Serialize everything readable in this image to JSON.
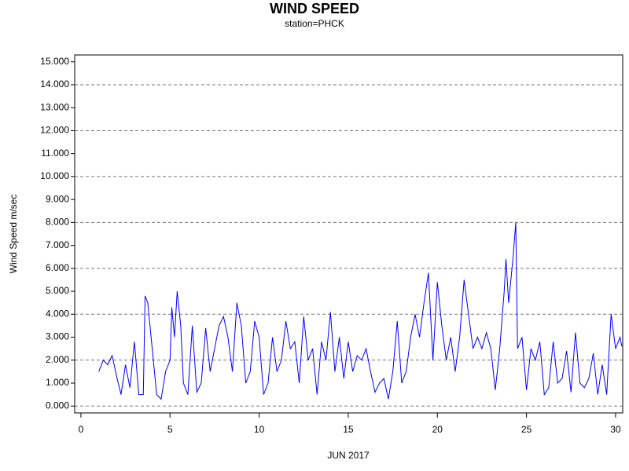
{
  "chart_data": {
    "type": "line",
    "title": "WIND SPEED",
    "subtitle": "station=PHCK",
    "y_label": "Wind Speed m/sec",
    "x_label": "JUN 2017",
    "xlim": [
      -0.35,
      30.4
    ],
    "xticks": [
      0,
      5,
      10,
      15,
      20,
      25,
      30
    ],
    "ylim": [
      -0.3,
      15.3
    ],
    "yticks": [
      {
        "value": 0,
        "label": "0.000"
      },
      {
        "value": 1,
        "label": "1.000"
      },
      {
        "value": 2,
        "label": "2.000"
      },
      {
        "value": 3,
        "label": "3.000"
      },
      {
        "value": 4,
        "label": "4.000"
      },
      {
        "value": 5,
        "label": "5.000"
      },
      {
        "value": 6,
        "label": "6.000"
      },
      {
        "value": 7,
        "label": "7.000"
      },
      {
        "value": 8,
        "label": "8.000"
      },
      {
        "value": 9,
        "label": "9.000"
      },
      {
        "value": 10,
        "label": "10.000"
      },
      {
        "value": 11,
        "label": "11.000"
      },
      {
        "value": 12,
        "label": "12.000"
      },
      {
        "value": 13,
        "label": "13.000"
      },
      {
        "value": 14,
        "label": "14.000"
      },
      {
        "value": 15,
        "label": "15.000"
      }
    ],
    "grid": true,
    "grid_every": 2,
    "x": [
      1.0,
      1.25,
      1.5,
      1.75,
      2.0,
      2.25,
      2.5,
      2.75,
      3.0,
      3.25,
      3.5,
      3.6,
      3.75,
      4.0,
      4.25,
      4.5,
      4.75,
      5.0,
      5.1,
      5.25,
      5.4,
      5.6,
      5.75,
      6.0,
      6.25,
      6.5,
      6.75,
      7.0,
      7.25,
      7.5,
      7.75,
      8.0,
      8.25,
      8.5,
      8.75,
      9.0,
      9.25,
      9.5,
      9.75,
      10.0,
      10.25,
      10.5,
      10.75,
      11.0,
      11.25,
      11.5,
      11.75,
      12.0,
      12.25,
      12.5,
      12.75,
      13.0,
      13.25,
      13.5,
      13.75,
      14.0,
      14.25,
      14.5,
      14.75,
      15.0,
      15.25,
      15.5,
      15.75,
      16.0,
      16.25,
      16.5,
      16.75,
      17.0,
      17.25,
      17.5,
      17.75,
      18.0,
      18.25,
      18.5,
      18.75,
      19.0,
      19.25,
      19.5,
      19.75,
      20.0,
      20.25,
      20.5,
      20.75,
      21.0,
      21.25,
      21.5,
      21.75,
      22.0,
      22.25,
      22.5,
      22.75,
      23.0,
      23.25,
      23.5,
      23.75,
      23.85,
      24.0,
      24.25,
      24.4,
      24.5,
      24.75,
      25.0,
      25.25,
      25.5,
      25.75,
      26.0,
      26.25,
      26.5,
      26.75,
      27.0,
      27.25,
      27.5,
      27.75,
      28.0,
      28.25,
      28.5,
      28.75,
      29.0,
      29.25,
      29.5,
      29.75,
      30.0,
      30.25,
      30.35
    ],
    "series": [
      {
        "name": "Wind Speed",
        "color": "#0000ff",
        "values": [
          1.5,
          2.0,
          1.8,
          2.2,
          1.3,
          0.5,
          1.8,
          0.8,
          2.8,
          0.5,
          0.5,
          4.8,
          4.5,
          2.5,
          0.5,
          0.3,
          1.5,
          2.0,
          4.3,
          3.0,
          5.0,
          3.5,
          1.0,
          0.5,
          3.5,
          0.6,
          1.0,
          3.4,
          1.5,
          2.5,
          3.5,
          3.9,
          3.0,
          1.5,
          4.5,
          3.5,
          1.0,
          1.5,
          3.7,
          3.0,
          0.5,
          1.0,
          3.0,
          1.5,
          2.0,
          3.7,
          2.5,
          2.8,
          1.0,
          3.9,
          2.0,
          2.5,
          0.5,
          2.8,
          2.0,
          4.1,
          1.5,
          3.0,
          1.2,
          2.8,
          1.5,
          2.2,
          2.0,
          2.5,
          1.5,
          0.6,
          1.0,
          1.2,
          0.3,
          1.5,
          3.7,
          1.0,
          1.5,
          3.0,
          4.0,
          3.0,
          4.5,
          5.8,
          2.0,
          5.4,
          3.5,
          2.0,
          3.0,
          1.5,
          3.0,
          5.5,
          4.0,
          2.5,
          3.0,
          2.5,
          3.2,
          2.5,
          0.7,
          2.5,
          5.0,
          6.4,
          4.5,
          6.5,
          8.0,
          2.5,
          3.0,
          0.7,
          2.5,
          2.0,
          2.8,
          0.5,
          0.8,
          2.8,
          1.0,
          1.2,
          2.4,
          0.6,
          3.2,
          1.0,
          0.8,
          1.2,
          2.3,
          0.5,
          1.8,
          0.5,
          4.0,
          2.5,
          3.0,
          2.6
        ]
      }
    ]
  }
}
